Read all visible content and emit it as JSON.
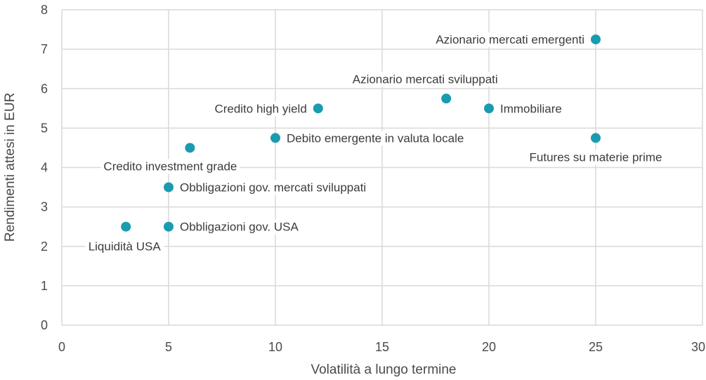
{
  "chart_data": {
    "type": "scatter",
    "xlabel": "Volatilità a lungo termine",
    "ylabel": "Rendimenti attesi in EUR",
    "xlim": [
      0,
      30
    ],
    "ylim": [
      0,
      8
    ],
    "x_ticks": [
      "0",
      "5",
      "10",
      "15",
      "20",
      "25",
      "30"
    ],
    "y_ticks": [
      "0",
      "1",
      "2",
      "3",
      "4",
      "5",
      "6",
      "7",
      "8"
    ],
    "grid": true,
    "point_color": "#1a9bb0",
    "points": [
      {
        "label": "Liquidità USA",
        "x": 3,
        "y": 2.5
      },
      {
        "label": "Obbligazioni gov. USA",
        "x": 5,
        "y": 2.5
      },
      {
        "label": "Obbligazioni gov. mercati sviluppati",
        "x": 5,
        "y": 3.5
      },
      {
        "label": "Credito investment grade",
        "x": 6,
        "y": 4.5
      },
      {
        "label": "Debito emergente in valuta locale",
        "x": 10,
        "y": 4.75
      },
      {
        "label": "Credito high yield",
        "x": 12,
        "y": 5.5
      },
      {
        "label": "Azionario mercati sviluppati",
        "x": 18,
        "y": 5.75
      },
      {
        "label": "Immobiliare",
        "x": 20,
        "y": 5.5
      },
      {
        "label": "Futures su materie prime",
        "x": 25,
        "y": 4.75
      },
      {
        "label": "Azionario mercati emergenti",
        "x": 25,
        "y": 7.25
      }
    ]
  }
}
